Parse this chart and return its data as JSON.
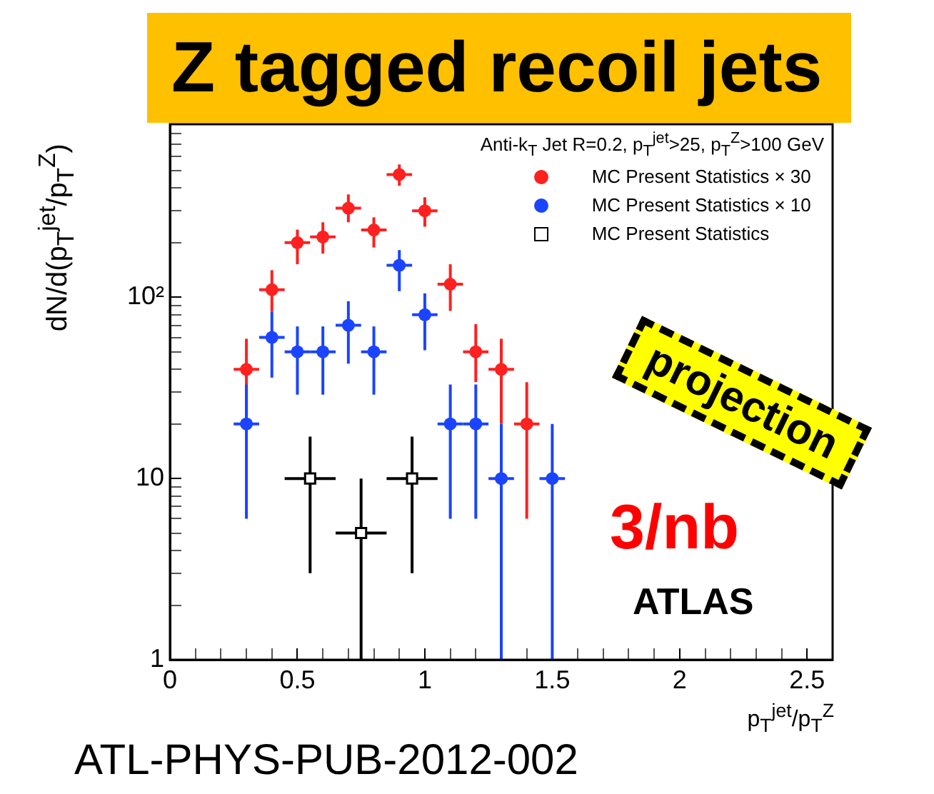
{
  "chart_data": {
    "type": "scatter",
    "title": "Z tagged recoil jets",
    "xlabel": "p$_{T}$$^{jet}$/p$_{T}$$^{Z}$",
    "ylabel": "dN/d(p$_{T}$$^{jet}$/p$_{T}$$^{Z}$)",
    "legend_title": "Anti-k$_{T}$ Jet R=0.2, p$_{T}$$^{jet}$>25, p$_{T}$$^{Z}$>100 GeV",
    "annotations": [
      "projection",
      "3/nb",
      "ATLAS",
      "ATL-PHYS-PUB-2012-002"
    ],
    "log": "y",
    "legend": "top right",
    "grid": false,
    "xlim": [
      0,
      2.6
    ],
    "ylim": [
      1,
      900
    ],
    "xticks": [
      0,
      {
        "value": 0.1,
        "label": null
      },
      {
        "value": 0.2,
        "label": null
      },
      {
        "value": 0.3,
        "label": null
      },
      {
        "value": 0.4,
        "label": null
      },
      0.5,
      {
        "value": 0.6,
        "label": null
      },
      {
        "value": 0.7,
        "label": null
      },
      {
        "value": 0.8,
        "label": null
      },
      {
        "value": 0.9,
        "label": null
      },
      1,
      {
        "value": 1.1,
        "label": null
      },
      {
        "value": 1.2,
        "label": null
      },
      {
        "value": 1.3,
        "label": null
      },
      {
        "value": 1.4,
        "label": null
      },
      1.5,
      {
        "value": 1.6,
        "label": null
      },
      {
        "value": 1.7,
        "label": null
      },
      {
        "value": 1.8,
        "label": null
      },
      {
        "value": 1.9,
        "label": null
      },
      2,
      {
        "value": 2.1,
        "label": null
      },
      {
        "value": 2.2,
        "label": null
      },
      {
        "value": 2.3,
        "label": null
      },
      {
        "value": 2.4,
        "label": null
      },
      2.5
    ],
    "yticks": [
      1,
      {
        "value": 2,
        "label": null
      },
      {
        "value": 3,
        "label": null
      },
      {
        "value": 4,
        "label": null
      },
      {
        "value": 5,
        "label": null
      },
      {
        "value": 6,
        "label": null
      },
      {
        "value": 7,
        "label": null
      },
      {
        "value": 8,
        "label": null
      },
      {
        "value": 9,
        "label": null
      },
      10,
      {
        "value": 20,
        "label": null
      },
      {
        "value": 30,
        "label": null
      },
      {
        "value": 40,
        "label": null
      },
      {
        "value": 50,
        "label": null
      },
      {
        "value": 60,
        "label": null
      },
      {
        "value": 70,
        "label": null
      },
      {
        "value": 80,
        "label": null
      },
      {
        "value": 90,
        "label": null
      },
      {
        "value": 100,
        "label": "10²"
      },
      {
        "value": 200,
        "label": null
      },
      {
        "value": 300,
        "label": null
      },
      {
        "value": 400,
        "label": null
      },
      {
        "value": 500,
        "label": null
      },
      {
        "value": 600,
        "label": null
      },
      {
        "value": 700,
        "label": null
      },
      {
        "value": 800,
        "label": null
      },
      {
        "value": 900,
        "label": null
      }
    ],
    "series": [
      {
        "name": "MC Present Statistics × 30",
        "color": "#ff2020",
        "marker": "circle",
        "x": [
          0.3,
          0.4,
          0.5,
          0.6,
          0.7,
          0.8,
          0.9,
          1.0,
          1.1,
          1.2,
          1.3,
          1.4
        ],
        "values": [
          40,
          110,
          200,
          215,
          310,
          235,
          475,
          300,
          118,
          50,
          40,
          20
        ],
        "errors": [
          [
            22,
            59
          ],
          [
            83,
            141
          ],
          [
            152,
            236
          ],
          [
            174,
            259
          ],
          [
            259,
            369
          ],
          [
            188,
            276
          ],
          [
            412,
            540
          ],
          [
            245,
            356
          ],
          [
            84,
            152
          ],
          [
            34,
            71
          ],
          [
            20,
            59
          ],
          [
            6,
            34
          ]
        ],
        "xerrors": [
          0.05,
          0.05,
          0.05,
          0.05,
          0.05,
          0.05,
          0.05,
          0.05,
          0.05,
          0.05,
          0.05,
          0.05
        ]
      },
      {
        "name": "MC Present Statistics × 10",
        "color": "#1a44ff",
        "marker": "circle",
        "x": [
          0.3,
          0.4,
          0.5,
          0.6,
          0.7,
          0.8,
          0.9,
          1.0,
          1.1,
          1.2,
          1.3,
          1.5
        ],
        "values": [
          20,
          60,
          50,
          50,
          70,
          50,
          150,
          80,
          20,
          20,
          10,
          10
        ],
        "errors": [
          [
            6,
            33
          ],
          [
            36,
            83
          ],
          [
            29,
            69
          ],
          [
            29,
            69
          ],
          [
            43,
            95
          ],
          [
            29,
            69
          ],
          [
            108,
            182
          ],
          [
            51,
            105
          ],
          [
            6,
            33
          ],
          [
            6,
            33
          ],
          [
            1,
            20
          ],
          [
            1,
            20
          ]
        ],
        "xerrors": [
          0.05,
          0.05,
          0.05,
          0.05,
          0.05,
          0.05,
          0.05,
          0.05,
          0.05,
          0.05,
          0.05,
          0.05
        ]
      },
      {
        "name": "MC Present Statistics",
        "color": "#000000",
        "marker": "square",
        "x": [
          0.55,
          0.75,
          0.95
        ],
        "values": [
          10,
          5,
          10
        ],
        "errors": [
          [
            3,
            17
          ],
          [
            1,
            10
          ],
          [
            3,
            17
          ]
        ],
        "xerrors": [
          0.1,
          0.1,
          0.1
        ]
      }
    ]
  }
}
